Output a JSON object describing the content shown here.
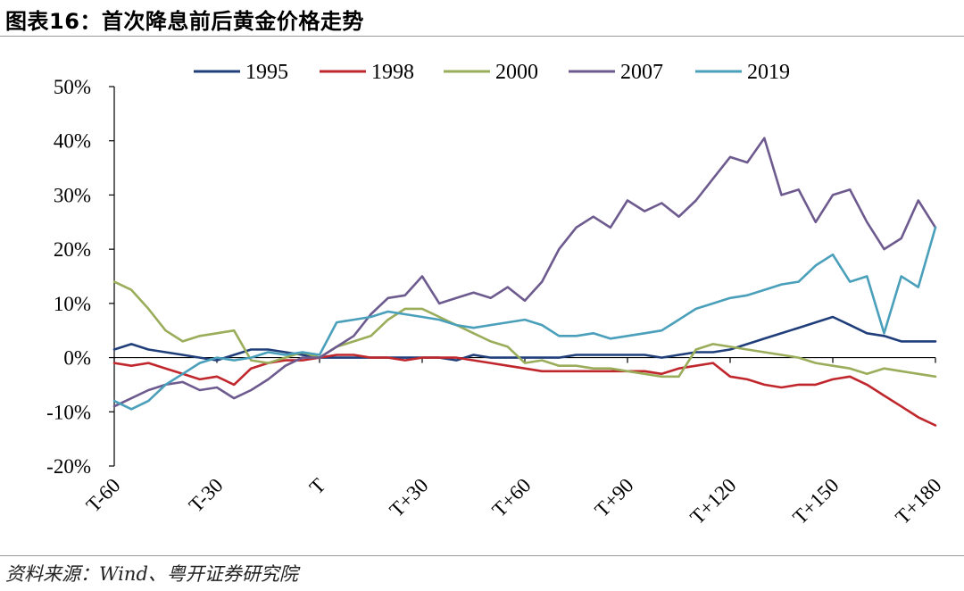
{
  "header": {
    "title": "图表16：首次降息前后黄金价格走势"
  },
  "footer": {
    "source": "资料来源：Wind、粤开证券研究院"
  },
  "chart_data": {
    "type": "line",
    "title": "图表16：首次降息前后黄金价格走势",
    "xlabel": "",
    "ylabel": "",
    "xlim": [
      -60,
      180
    ],
    "ylim": [
      -20,
      50
    ],
    "y_ticks": [
      -20,
      -10,
      0,
      10,
      20,
      30,
      40,
      50
    ],
    "y_tick_labels": [
      "-20%",
      "-10%",
      "0%",
      "10%",
      "20%",
      "30%",
      "40%",
      "50%"
    ],
    "x_ticks": [
      -60,
      -30,
      0,
      30,
      60,
      90,
      120,
      150,
      180
    ],
    "x_tick_labels": [
      "T-60",
      "T-30",
      "T",
      "T+30",
      "T+60",
      "T+90",
      "T+120",
      "T+150",
      "T+180"
    ],
    "legend_position": "top",
    "grid": false,
    "series": [
      {
        "name": "1995",
        "color": "#1f3e7a",
        "x": [
          -60,
          -55,
          -50,
          -45,
          -40,
          -35,
          -30,
          -25,
          -20,
          -15,
          -10,
          -5,
          0,
          5,
          10,
          15,
          20,
          25,
          30,
          35,
          40,
          45,
          50,
          55,
          60,
          65,
          70,
          75,
          80,
          85,
          90,
          95,
          100,
          105,
          110,
          115,
          120,
          125,
          130,
          135,
          140,
          145,
          150,
          155,
          160,
          165,
          170,
          175,
          180
        ],
        "values": [
          1.5,
          2.5,
          1.5,
          1.0,
          0.5,
          0.0,
          -0.5,
          0.5,
          1.5,
          1.5,
          1.0,
          0.5,
          0.0,
          0.0,
          0.0,
          0.0,
          0.0,
          0.0,
          0.0,
          0.0,
          -0.5,
          0.5,
          0.0,
          0.0,
          0.0,
          0.0,
          0.0,
          0.5,
          0.5,
          0.5,
          0.5,
          0.5,
          0.0,
          0.5,
          1.0,
          1.0,
          1.5,
          2.5,
          3.5,
          4.5,
          5.5,
          6.5,
          7.5,
          6.0,
          4.5,
          4.0,
          3.0,
          3.0,
          3.0
        ]
      },
      {
        "name": "1998",
        "color": "#c0272d",
        "x": [
          -60,
          -55,
          -50,
          -45,
          -40,
          -35,
          -30,
          -25,
          -20,
          -15,
          -10,
          -5,
          0,
          5,
          10,
          15,
          20,
          25,
          30,
          35,
          40,
          45,
          50,
          55,
          60,
          65,
          70,
          75,
          80,
          85,
          90,
          95,
          100,
          105,
          110,
          115,
          120,
          125,
          130,
          135,
          140,
          145,
          150,
          155,
          160,
          165,
          170,
          175,
          180
        ],
        "values": [
          -1.0,
          -1.5,
          -1.0,
          -2.0,
          -3.0,
          -4.0,
          -3.5,
          -5.0,
          -2.0,
          -1.0,
          -0.5,
          -0.5,
          0.0,
          0.5,
          0.5,
          0.0,
          0.0,
          -0.5,
          0.0,
          0.0,
          0.0,
          -0.5,
          -1.0,
          -1.5,
          -2.0,
          -2.5,
          -2.5,
          -2.5,
          -2.5,
          -2.5,
          -2.5,
          -2.5,
          -3.0,
          -2.0,
          -1.5,
          -1.0,
          -3.5,
          -4.0,
          -5.0,
          -5.5,
          -5.0,
          -5.0,
          -4.0,
          -3.5,
          -5.0,
          -7.0,
          -9.0,
          -11.0,
          -12.5
        ]
      },
      {
        "name": "2000",
        "color": "#9aad5a",
        "x": [
          -60,
          -55,
          -50,
          -45,
          -40,
          -35,
          -30,
          -25,
          -20,
          -15,
          -10,
          -5,
          0,
          5,
          10,
          15,
          20,
          25,
          30,
          35,
          40,
          45,
          50,
          55,
          60,
          65,
          70,
          75,
          80,
          85,
          90,
          95,
          100,
          105,
          110,
          115,
          120,
          125,
          130,
          135,
          140,
          145,
          150,
          155,
          160,
          165,
          170,
          175,
          180
        ],
        "values": [
          14.0,
          12.5,
          9.0,
          5.0,
          3.0,
          4.0,
          4.5,
          5.0,
          -0.5,
          -1.0,
          0.0,
          1.0,
          0.0,
          2.0,
          3.0,
          4.0,
          7.0,
          9.0,
          9.0,
          7.5,
          6.0,
          4.5,
          3.0,
          2.0,
          -1.0,
          -0.5,
          -1.5,
          -1.5,
          -2.0,
          -2.0,
          -2.5,
          -3.0,
          -3.5,
          -3.5,
          1.5,
          2.5,
          2.0,
          1.5,
          1.0,
          0.5,
          0.0,
          -1.0,
          -1.5,
          -2.0,
          -3.0,
          -2.0,
          -2.5,
          -3.0,
          -3.5
        ]
      },
      {
        "name": "2007",
        "color": "#6d5a8e",
        "x": [
          -60,
          -55,
          -50,
          -45,
          -40,
          -35,
          -30,
          -25,
          -20,
          -15,
          -10,
          -5,
          0,
          5,
          10,
          15,
          20,
          25,
          30,
          35,
          40,
          45,
          50,
          55,
          60,
          65,
          70,
          75,
          80,
          85,
          90,
          95,
          100,
          105,
          110,
          115,
          120,
          125,
          130,
          135,
          140,
          145,
          150,
          155,
          160,
          165,
          170,
          175,
          180
        ],
        "values": [
          -9.0,
          -7.5,
          -6.0,
          -5.0,
          -4.5,
          -6.0,
          -5.5,
          -7.5,
          -6.0,
          -4.0,
          -1.5,
          0.0,
          0.0,
          2.0,
          4.0,
          8.0,
          11.0,
          11.5,
          15.0,
          10.0,
          11.0,
          12.0,
          11.0,
          13.0,
          10.5,
          14.0,
          20.0,
          24.0,
          26.0,
          24.0,
          29.0,
          27.0,
          28.5,
          26.0,
          29.0,
          33.0,
          37.0,
          36.0,
          40.5,
          30.0,
          31.0,
          25.0,
          30.0,
          31.0,
          25.0,
          20.0,
          22.0,
          29.0,
          24.0
        ]
      },
      {
        "name": "2019",
        "color": "#4a9fba",
        "x": [
          -60,
          -55,
          -50,
          -45,
          -40,
          -35,
          -30,
          -25,
          -20,
          -15,
          -10,
          -5,
          0,
          5,
          10,
          15,
          20,
          25,
          30,
          35,
          40,
          45,
          50,
          55,
          60,
          65,
          70,
          75,
          80,
          85,
          90,
          95,
          100,
          105,
          110,
          115,
          120,
          125,
          130,
          135,
          140,
          145,
          150,
          155,
          160,
          165,
          170,
          175,
          180
        ],
        "values": [
          -8.0,
          -9.5,
          -8.0,
          -5.0,
          -3.0,
          -1.0,
          0.0,
          -0.5,
          0.0,
          1.0,
          0.5,
          1.0,
          0.5,
          6.5,
          7.0,
          7.5,
          8.5,
          8.0,
          7.5,
          7.0,
          6.0,
          5.5,
          6.0,
          6.5,
          7.0,
          6.0,
          4.0,
          4.0,
          4.5,
          3.5,
          4.0,
          4.5,
          5.0,
          7.0,
          9.0,
          10.0,
          11.0,
          11.5,
          12.5,
          13.5,
          14.0,
          17.0,
          19.0,
          14.0,
          15.0,
          4.5,
          15.0,
          13.0,
          24.0
        ]
      }
    ]
  }
}
